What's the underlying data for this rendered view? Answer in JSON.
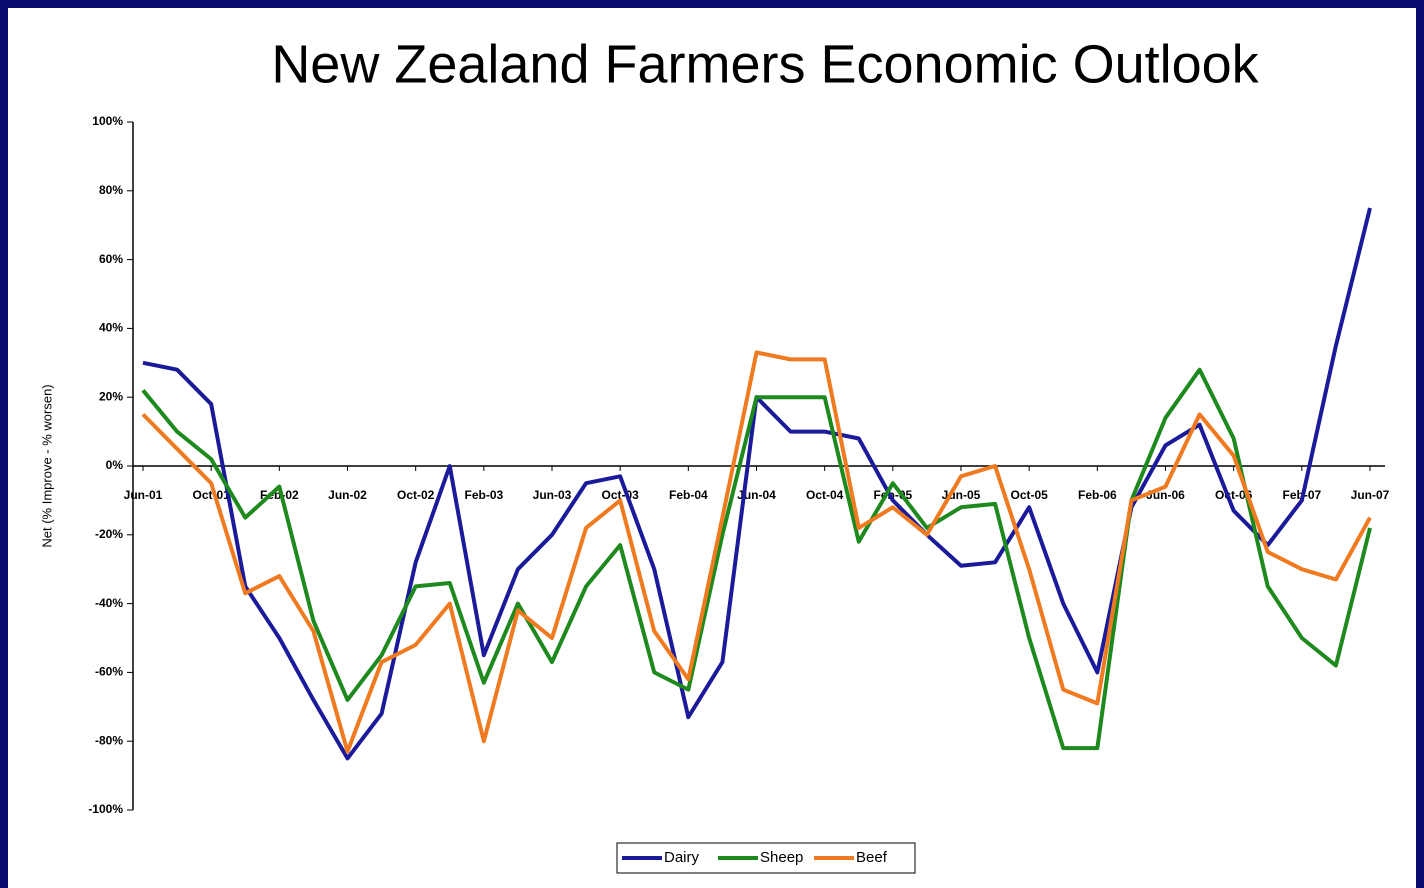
{
  "chart_data": {
    "type": "line",
    "title": "New Zealand Farmers Economic Outlook",
    "y_label": "Net (% Improve - % worsen)",
    "categories": [
      "Jun-01",
      null,
      "Oct-01",
      null,
      "Feb-02",
      null,
      "Jun-02",
      null,
      "Oct-02",
      null,
      "Feb-03",
      null,
      "Jun-03",
      null,
      "Oct-03",
      null,
      "Feb-04",
      null,
      "Jun-04",
      null,
      "Oct-04",
      null,
      "Feb-05",
      null,
      "Jun-05",
      null,
      "Oct-05",
      null,
      "Feb-06",
      null,
      "Jun-06",
      null,
      "Oct-06",
      null,
      "Feb-07",
      null,
      "Jun-07"
    ],
    "series": [
      {
        "name": "Dairy",
        "color": "#1a1a9a",
        "values": [
          30,
          28,
          18,
          -35,
          -50,
          -68,
          -85,
          -72,
          -28,
          0,
          -55,
          -30,
          -20,
          -5,
          -3,
          -30,
          -73,
          -57,
          20,
          10,
          10,
          8,
          -10,
          -20,
          -29,
          -28,
          -12,
          -40,
          -60,
          -12,
          6,
          12,
          -13,
          -23,
          -10,
          35,
          75
        ]
      },
      {
        "name": "Sheep",
        "color": "#1e8a1e",
        "values": [
          22,
          10,
          2,
          -15,
          -6,
          -45,
          -68,
          -55,
          -35,
          -34,
          -63,
          -40,
          -57,
          -35,
          -23,
          -60,
          -65,
          -20,
          20,
          20,
          20,
          -22,
          -5,
          -18,
          -12,
          -11,
          -50,
          -82,
          -82,
          -10,
          14,
          28,
          8,
          -35,
          -50,
          -58,
          -18
        ]
      },
      {
        "name": "Beef",
        "color": "#f07a20",
        "values": [
          15,
          5,
          -5,
          -37,
          -32,
          -48,
          -83,
          -57,
          -52,
          -40,
          -80,
          -42,
          -50,
          -18,
          -10,
          -48,
          -62,
          -15,
          33,
          31,
          31,
          -18,
          -12,
          -20,
          -3,
          0,
          -30,
          -65,
          -69,
          -10,
          -6,
          15,
          3,
          -25,
          -30,
          -33,
          -15
        ]
      }
    ],
    "ylim": [
      -100,
      100
    ],
    "yticks": [
      {
        "value": -100,
        "label": "-100%"
      },
      {
        "value": -80,
        "label": "-80%"
      },
      {
        "value": -60,
        "label": "-60%"
      },
      {
        "value": -40,
        "label": "-40%"
      },
      {
        "value": -20,
        "label": "-20%"
      },
      {
        "value": 0,
        "label": "0%"
      },
      {
        "value": 20,
        "label": "20%"
      },
      {
        "value": 40,
        "label": "40%"
      },
      {
        "value": 60,
        "label": "60%"
      },
      {
        "value": 80,
        "label": "80%"
      },
      {
        "value": 100,
        "label": "100%"
      }
    ]
  }
}
